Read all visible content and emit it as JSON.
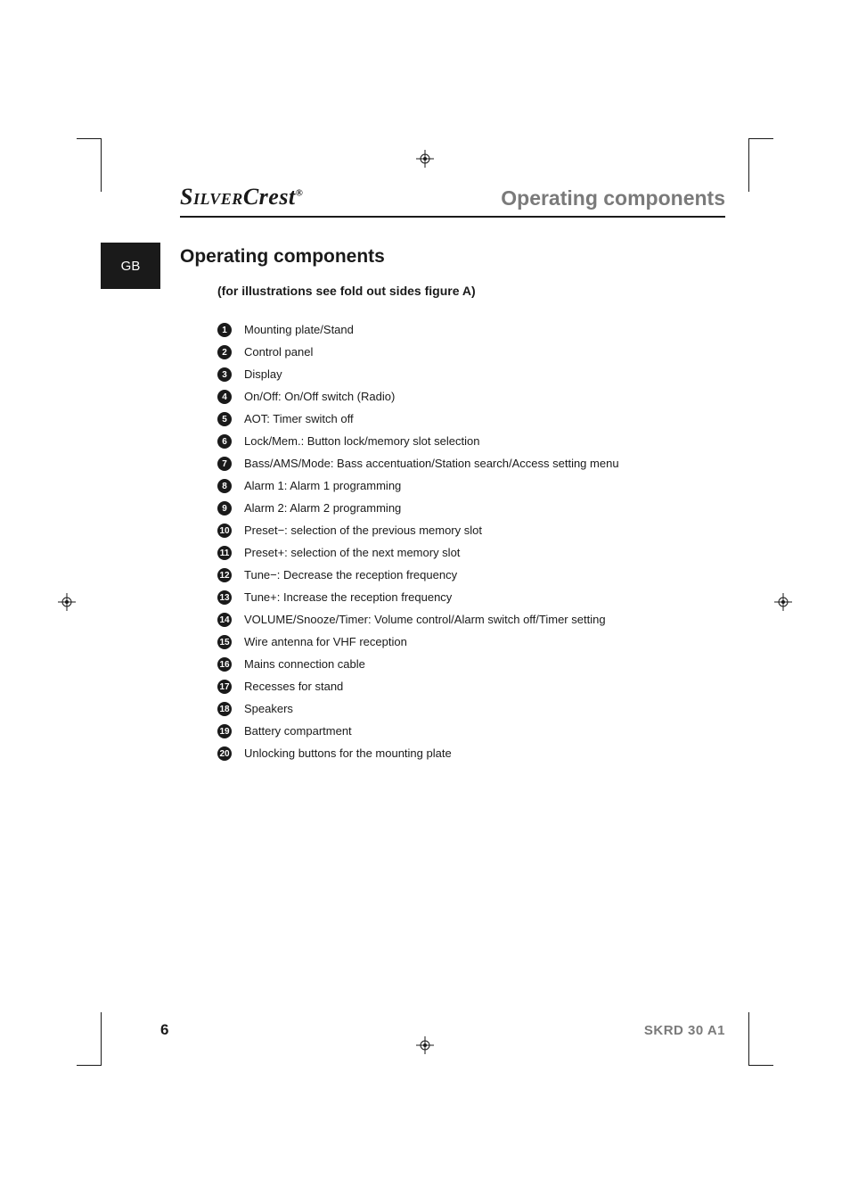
{
  "header": {
    "brand_main": "Silver",
    "brand_sub": "Crest",
    "brand_reg": "®",
    "section_title": "Operating components"
  },
  "side_tab": "GB",
  "content": {
    "heading": "Operating components",
    "subheading": "(for illustrations see fold out sides figure A)",
    "items": [
      {
        "n": "1",
        "text": "Mounting plate/Stand"
      },
      {
        "n": "2",
        "text": "Control panel"
      },
      {
        "n": "3",
        "text": "Display"
      },
      {
        "n": "4",
        "text": "On/Off: On/Off switch (Radio)"
      },
      {
        "n": "5",
        "text": "AOT: Timer switch off"
      },
      {
        "n": "6",
        "text": "Lock/Mem.: Button lock/memory slot selection"
      },
      {
        "n": "7",
        "text": "Bass/AMS/Mode: Bass accentuation/Station search/Access setting menu"
      },
      {
        "n": "8",
        "text": "Alarm 1: Alarm 1 programming"
      },
      {
        "n": "9",
        "text": "Alarm 2: Alarm 2 programming"
      },
      {
        "n": "10",
        "text": "Preset−: selection of the previous memory slot"
      },
      {
        "n": "11",
        "text": "Preset+: selection of the next memory slot"
      },
      {
        "n": "12",
        "text": "Tune−: Decrease the reception frequency"
      },
      {
        "n": "13",
        "text": "Tune+: Increase the reception frequency"
      },
      {
        "n": "14",
        "text": "VOLUME/Snooze/Timer: Volume control/Alarm switch off/Timer setting"
      },
      {
        "n": "15",
        "text": "Wire antenna for VHF reception"
      },
      {
        "n": "16",
        "text": "Mains connection cable"
      },
      {
        "n": "17",
        "text": "Recesses for stand"
      },
      {
        "n": "18",
        "text": "Speakers"
      },
      {
        "n": "19",
        "text": "Battery compartment"
      },
      {
        "n": "20",
        "text": "Unlocking buttons for the mounting plate"
      }
    ]
  },
  "footer": {
    "page_number": "6",
    "model": "SKRD 30 A1"
  },
  "colors": {
    "text": "#1a1a1a",
    "muted": "#7a7a7a",
    "bg": "#ffffff"
  }
}
